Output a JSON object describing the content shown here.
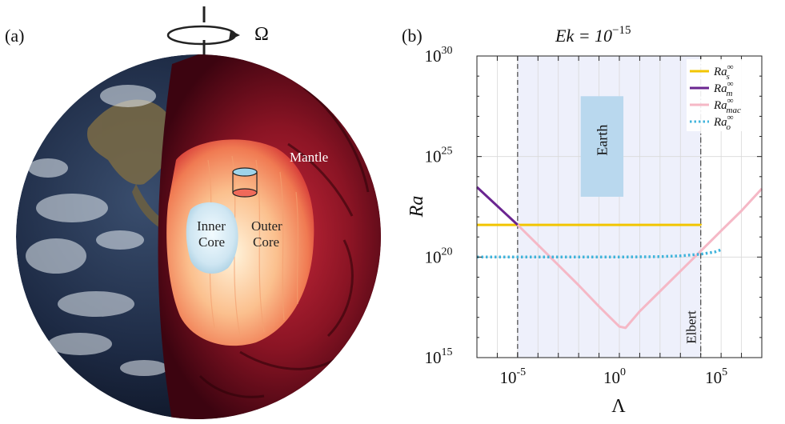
{
  "figure": {
    "panel_a_label": "(a)",
    "panel_b_label": "(b)"
  },
  "panel_a": {
    "rotation_symbol": "Ω",
    "mantle_label": "Mantle",
    "inner_core_label": [
      "Inner",
      "Core"
    ],
    "outer_core_label": [
      "Outer",
      "Core"
    ],
    "colors": {
      "mantle": "#5a0a18",
      "outer_core": "#f59a6a",
      "inner_core": "#d8ecf4",
      "ocean": "#1b2740"
    }
  },
  "chart_data": {
    "type": "line",
    "title": "Ek = 10^-15",
    "title_parts": {
      "base": "Ek = 10",
      "exp": "−15"
    },
    "xlabel": "Λ",
    "ylabel": "Ra",
    "x_scale": "log",
    "y_scale": "log",
    "xlim": [
      1e-07,
      10000000.0
    ],
    "ylim": [
      1000000000000000.0,
      1e+30
    ],
    "x_tick_labels": [
      {
        "value": 1e-05,
        "base": "10",
        "exp": "-5"
      },
      {
        "value": 1,
        "base": "10",
        "exp": "0"
      },
      {
        "value": 100000.0,
        "base": "10",
        "exp": "5"
      }
    ],
    "y_tick_labels": [
      {
        "value": 1000000000000000.0,
        "base": "10",
        "exp": "15"
      },
      {
        "value": 1e+20,
        "base": "10",
        "exp": "20"
      },
      {
        "value": 1e+25,
        "base": "10",
        "exp": "25"
      },
      {
        "value": 1e+30,
        "base": "10",
        "exp": "30"
      }
    ],
    "grid": true,
    "legend_position": "top-right",
    "series": [
      {
        "name": "Ra_s^∞",
        "legend_base": "Ra",
        "legend_sup": "∞",
        "legend_sub": "s",
        "color": "#f2c500",
        "style": "solid",
        "x": [
          1e-07,
          1e-05,
          1.0,
          10000.0,
          10000.0
        ],
        "y": [
          4e+21,
          4e+21,
          4e+21,
          4e+21,
          3.8e+21
        ]
      },
      {
        "name": "Ra_m^∞",
        "legend_base": "Ra",
        "legend_sup": "∞",
        "legend_sub": "m",
        "color": "#6a2590",
        "style": "solid",
        "x": [
          1e-07,
          1e-05
        ],
        "y": [
          3e+23,
          4e+21
        ]
      },
      {
        "name": "Ra_mac^∞",
        "legend_base": "Ra",
        "legend_sup": "∞",
        "legend_sub": "mac",
        "color": "#f5b8c6",
        "style": "solid",
        "x": [
          1e-05,
          0.0001,
          0.001,
          0.01,
          0.1,
          1.0,
          2,
          10.0,
          100.0,
          1000.0,
          10000.0,
          100000.0,
          1000000.0,
          10000000.0
        ],
        "y": [
          4e+21,
          4e+20,
          4e+19,
          4e+18,
          3.5e+17,
          3.5e+16,
          3e+16,
          2e+17,
          2e+18,
          2e+19,
          2e+20,
          2e+21,
          2e+22,
          2.5e+23
        ]
      },
      {
        "name": "Ra_o^∞",
        "legend_base": "Ra",
        "legend_sup": "∞",
        "legend_sub": "o",
        "color": "#40b4dc",
        "style": "dotted",
        "x": [
          1e-07,
          0.0001,
          1.0,
          100.0,
          1000.0,
          10000.0,
          50000.0,
          100000.0
        ],
        "y": [
          1e+20,
          1e+20,
          1e+20,
          1.05e+20,
          1.15e+20,
          1.4e+20,
          1.8e+20,
          2.3e+20
        ]
      }
    ],
    "shaded_region": {
      "x": [
        1e-05,
        10000.0
      ],
      "color": "#eef0fb"
    },
    "vlines": [
      {
        "x": 1e-05,
        "style": "dashed",
        "color": "#444444"
      },
      {
        "x": 10000.0,
        "style": "dashdot",
        "color": "#444444",
        "label": "Elbert"
      }
    ],
    "earth_box": {
      "label": "Earth",
      "x": [
        0.0126,
        1.58
      ],
      "y": [
        1e+23,
        1e+28
      ],
      "color": "#b9d8ee"
    }
  }
}
